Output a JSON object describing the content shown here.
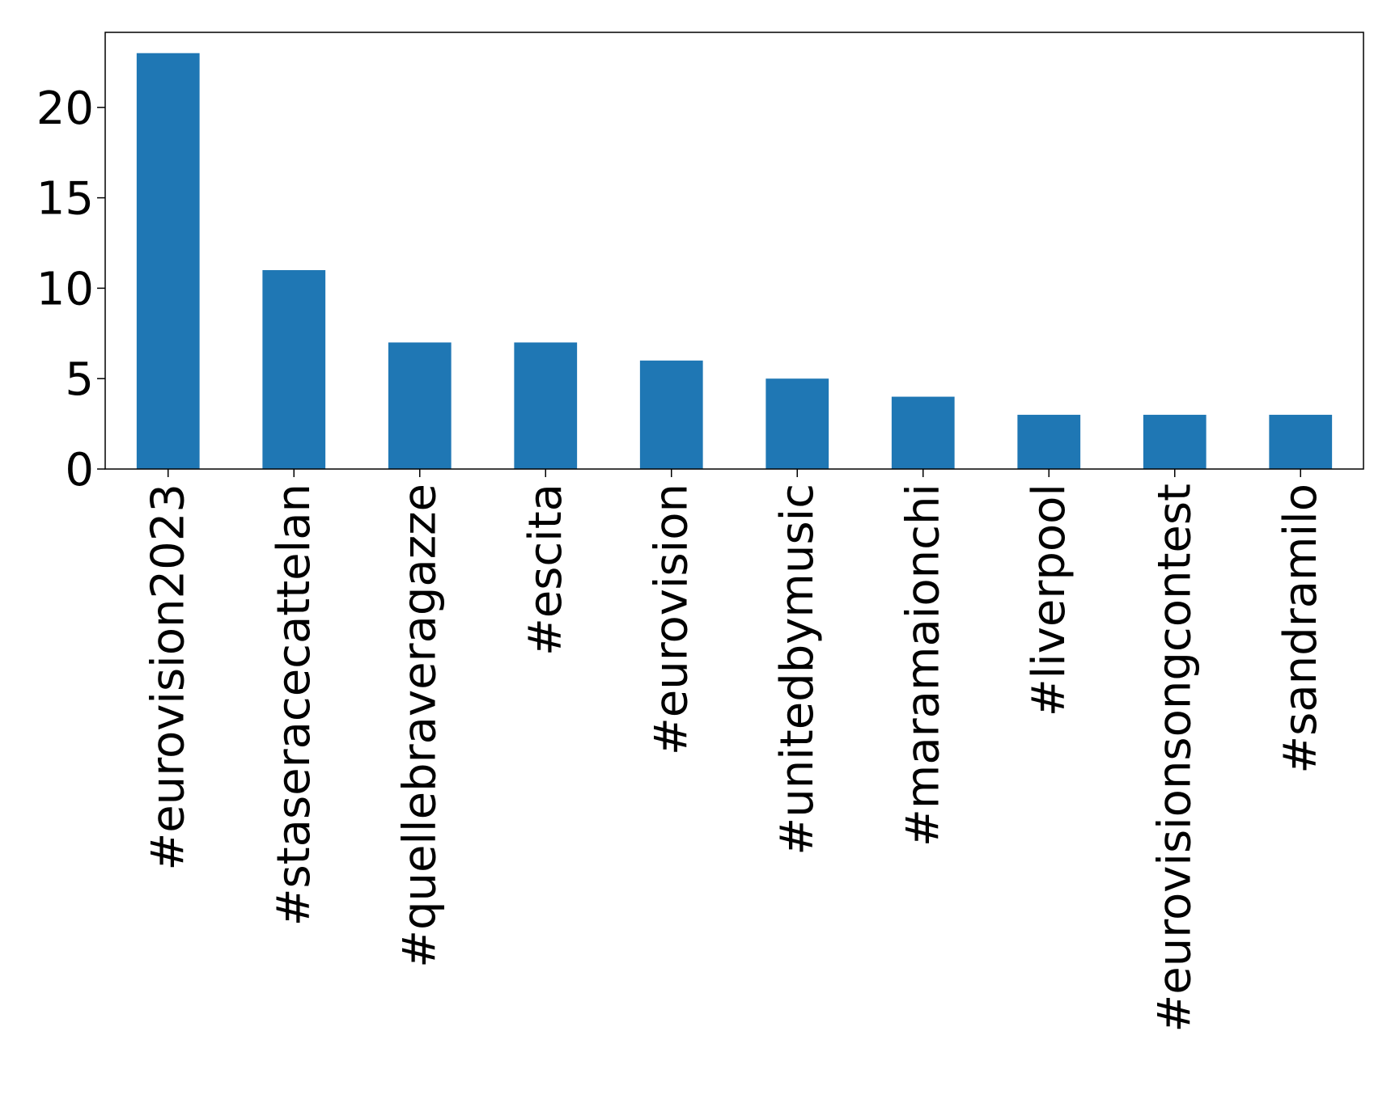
{
  "chart_data": {
    "type": "bar",
    "title": "",
    "xlabel": "",
    "ylabel": "",
    "categories": [
      "#eurovision2023",
      "#staseracecattelan",
      "#quellebraveragazze",
      "#escita",
      "#eurovision",
      "#unitedbymusic",
      "#maramaionchi",
      "#liverpool",
      "#eurovisionsongcontest",
      "#sandramilo"
    ],
    "values": [
      23,
      11,
      7,
      7,
      6,
      5,
      4,
      3,
      3,
      3
    ],
    "ylim": [
      0,
      24.15
    ],
    "yticks": [
      0,
      5,
      10,
      15,
      20
    ],
    "ytick_labels": [
      "0",
      "5",
      "10",
      "15",
      "20"
    ],
    "bar_color": "#1f77b4",
    "grid": false,
    "legend": "none"
  }
}
